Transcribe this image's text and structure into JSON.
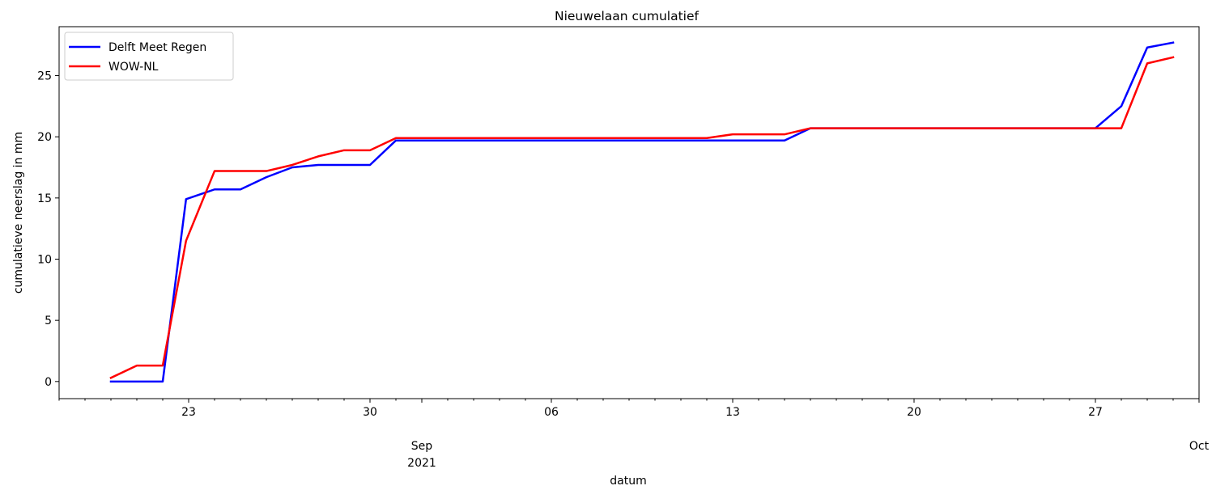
{
  "chart_data": {
    "type": "line",
    "title": "Nieuwelaan cumulatief",
    "xlabel": "datum",
    "ylabel": "cumulatieve neerslag in mm",
    "xlim": [
      "2021-08-18",
      "2021-10-01"
    ],
    "ylim": [
      -1.4,
      29
    ],
    "y_ticks": [
      0,
      5,
      10,
      15,
      20,
      25
    ],
    "x_major_ticks": [
      {
        "date": "2021-08-23",
        "label": "23"
      },
      {
        "date": "2021-08-30",
        "label": "30"
      },
      {
        "date": "2021-09-06",
        "label": "06"
      },
      {
        "date": "2021-09-13",
        "label": "13"
      },
      {
        "date": "2021-09-20",
        "label": "20"
      },
      {
        "date": "2021-09-27",
        "label": "27"
      }
    ],
    "x_month_labels": [
      {
        "date": "2021-09-01",
        "label": "Sep",
        "sublabel": "2021"
      },
      {
        "date": "2021-10-01",
        "label": "Oct",
        "sublabel": ""
      }
    ],
    "grid": false,
    "legend_position": "top-left",
    "series": [
      {
        "name": "Delft Meet Regen",
        "color": "#0000ff",
        "points": [
          [
            "2021-08-20",
            0.0
          ],
          [
            "2021-08-21",
            0.0
          ],
          [
            "2021-08-22",
            0.0
          ],
          [
            "2021-08-22.9",
            14.9
          ],
          [
            "2021-08-24",
            15.7
          ],
          [
            "2021-08-25",
            15.7
          ],
          [
            "2021-08-26",
            16.7
          ],
          [
            "2021-08-27",
            17.5
          ],
          [
            "2021-08-28",
            17.7
          ],
          [
            "2021-08-29",
            17.7
          ],
          [
            "2021-08-30",
            17.7
          ],
          [
            "2021-08-31",
            19.7
          ],
          [
            "2021-09-01",
            19.7
          ],
          [
            "2021-09-13",
            19.7
          ],
          [
            "2021-09-14",
            19.7
          ],
          [
            "2021-09-15",
            19.7
          ],
          [
            "2021-09-16",
            20.7
          ],
          [
            "2021-09-17",
            20.7
          ],
          [
            "2021-09-26",
            20.7
          ],
          [
            "2021-09-27",
            20.7
          ],
          [
            "2021-09-28",
            22.5
          ],
          [
            "2021-09-29",
            27.3
          ],
          [
            "2021-09-30",
            27.7
          ]
        ]
      },
      {
        "name": "WOW-NL",
        "color": "#ff0000",
        "points": [
          [
            "2021-08-20",
            0.3
          ],
          [
            "2021-08-21",
            1.3
          ],
          [
            "2021-08-22",
            1.3
          ],
          [
            "2021-08-22.9",
            11.5
          ],
          [
            "2021-08-24",
            17.2
          ],
          [
            "2021-08-25",
            17.2
          ],
          [
            "2021-08-26",
            17.2
          ],
          [
            "2021-08-27",
            17.7
          ],
          [
            "2021-08-28",
            18.4
          ],
          [
            "2021-08-29",
            18.9
          ],
          [
            "2021-08-30",
            18.9
          ],
          [
            "2021-08-31",
            19.9
          ],
          [
            "2021-09-01",
            19.9
          ],
          [
            "2021-09-12",
            19.9
          ],
          [
            "2021-09-13",
            20.2
          ],
          [
            "2021-09-14",
            20.2
          ],
          [
            "2021-09-15",
            20.2
          ],
          [
            "2021-09-16",
            20.7
          ],
          [
            "2021-09-17",
            20.7
          ],
          [
            "2021-09-27",
            20.7
          ],
          [
            "2021-09-28",
            20.7
          ],
          [
            "2021-09-29",
            26.0
          ],
          [
            "2021-09-30",
            26.5
          ]
        ]
      }
    ]
  }
}
